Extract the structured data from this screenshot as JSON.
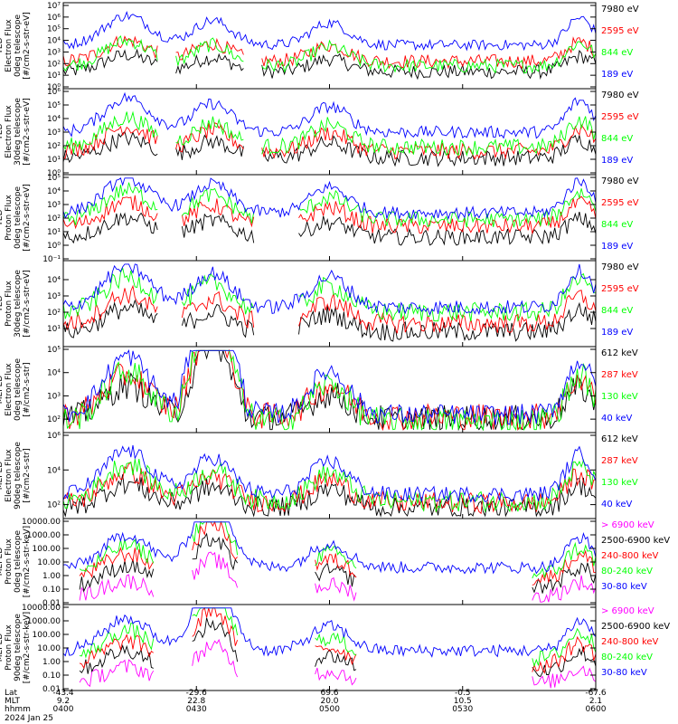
{
  "colors": {
    "blue": "#0000ff",
    "red": "#ff0000",
    "green": "#00ff00",
    "black": "#000000",
    "magenta": "#ff00ff"
  },
  "chart_data": {
    "type": "line",
    "x_ticks": [
      "0400",
      "0430",
      "0500",
      "0530",
      "0600"
    ],
    "footer": {
      "row_labels": [
        "Lat",
        "MLT",
        "hhmm"
      ],
      "lat": [
        "-43.4",
        "-29.6",
        "69.6",
        "-0.5",
        "-67.6"
      ],
      "mlt": [
        "9.2",
        "22.8",
        "20.0",
        "10.5",
        "2.1"
      ],
      "hhmm": [
        "0400",
        "0430",
        "0500",
        "0530",
        "0600"
      ],
      "date": "2024 Jan 25"
    },
    "panels": [
      {
        "ylabel": [
          "TED",
          "Electron Flux",
          "0deg telescope",
          "[#/cm2-s-str-eV]"
        ],
        "log": true,
        "ymin_exp": 0,
        "ymax_exp": 7,
        "ticks": [
          "10⁰",
          "10¹",
          "10²",
          "10³",
          "10⁴",
          "10⁵",
          "10⁶",
          "10⁷"
        ],
        "tick_exps": [
          0,
          1,
          2,
          3,
          4,
          5,
          6,
          7
        ],
        "series": [
          {
            "name": "7980 eV",
            "color": "black",
            "level": 1.3
          },
          {
            "name": "2595 eV",
            "color": "red",
            "level": 2.2
          },
          {
            "name": "844 eV",
            "color": "green",
            "level": 1.8
          },
          {
            "name": "189 eV",
            "color": "blue",
            "level": 3.6
          }
        ]
      },
      {
        "ylabel": [
          "TED",
          "Electron Flux",
          "30deg telescope",
          "[#/cm2-s-str-eV]"
        ],
        "log": true,
        "ymin_exp": 0,
        "ymax_exp": 6,
        "ticks": [
          "10⁰",
          "10¹",
          "10²",
          "10³",
          "10⁴",
          "10⁵",
          "10⁶"
        ],
        "tick_exps": [
          0,
          1,
          2,
          3,
          4,
          5,
          6
        ],
        "series": [
          {
            "name": "7980 eV",
            "color": "black",
            "level": 1.1
          },
          {
            "name": "2595 eV",
            "color": "red",
            "level": 1.6
          },
          {
            "name": "844 eV",
            "color": "green",
            "level": 1.9
          },
          {
            "name": "189 eV",
            "color": "blue",
            "level": 3.0
          }
        ]
      },
      {
        "ylabel": [
          "TED",
          "Proton Flux",
          "0deg telescope",
          "[#/cm2-s-str-eV]"
        ],
        "log": true,
        "ymin_exp": -1,
        "ymax_exp": 5,
        "ticks": [
          "10⁻¹",
          "10⁰",
          "10¹",
          "10²",
          "10³",
          "10⁴",
          "10⁵"
        ],
        "tick_exps": [
          -1,
          0,
          1,
          2,
          3,
          4,
          5
        ],
        "series": [
          {
            "name": "7980 eV",
            "color": "black",
            "level": 0.6
          },
          {
            "name": "2595 eV",
            "color": "red",
            "level": 1.4
          },
          {
            "name": "844 eV",
            "color": "green",
            "level": 1.9
          },
          {
            "name": "189 eV",
            "color": "blue",
            "level": 2.4
          }
        ]
      },
      {
        "ylabel": [
          "TED",
          "Proton Flux",
          "30deg telescope",
          "[#/cm2-s-str-eV]"
        ],
        "log": true,
        "ymin_exp": 0,
        "ymax_exp": 5,
        "ticks": [
          "10¹",
          "10²",
          "10³",
          "10⁴"
        ],
        "tick_exps": [
          1,
          2,
          3,
          4
        ],
        "series": [
          {
            "name": "7980 eV",
            "color": "black",
            "level": 0.8
          },
          {
            "name": "2595 eV",
            "color": "red",
            "level": 1.3
          },
          {
            "name": "844 eV",
            "color": "green",
            "level": 2.0
          },
          {
            "name": "189 eV",
            "color": "blue",
            "level": 2.3
          }
        ]
      },
      {
        "ylabel": [
          "MEPED",
          "Electron Flux",
          "0deg telescope",
          "[#/cm2-s-str]"
        ],
        "log": true,
        "ymin_exp": 1.5,
        "ymax_exp": 5,
        "ticks": [
          "10²",
          "10³",
          "10⁴",
          "10⁵"
        ],
        "tick_exps": [
          2,
          3,
          4,
          5
        ],
        "series": [
          {
            "name": "612 keV",
            "color": "black",
            "level": 2.0
          },
          {
            "name": "287 keV",
            "color": "red",
            "level": 2.1
          },
          {
            "name": "130 keV",
            "color": "green",
            "level": 1.9
          },
          {
            "name": "40 keV",
            "color": "blue",
            "level": 2.2
          }
        ]
      },
      {
        "ylabel": [
          "MEPED",
          "Electron Flux",
          "90deg telescope",
          "[#/cm2-s-str]"
        ],
        "log": true,
        "ymin_exp": 1.3,
        "ymax_exp": 6,
        "ticks": [
          "10²",
          "10⁴",
          "10⁶"
        ],
        "tick_exps": [
          2,
          4,
          6
        ],
        "series": [
          {
            "name": "612 keV",
            "color": "black",
            "level": 1.8
          },
          {
            "name": "287 keV",
            "color": "red",
            "level": 2.1
          },
          {
            "name": "130 keV",
            "color": "green",
            "level": 2.2
          },
          {
            "name": "40 keV",
            "color": "blue",
            "level": 2.6
          }
        ]
      },
      {
        "ylabel": [
          "MEPED",
          "Proton Flux",
          "0deg telescope",
          "[#/cm2-s-str-keV]"
        ],
        "log": true,
        "ymin_exp": -2,
        "ymax_exp": 4,
        "ticks": [
          "0.01",
          "0.10",
          "1.00",
          "10.00",
          "100.00",
          "1000.00",
          "10000.00"
        ],
        "tick_exps": [
          -2,
          -1,
          0,
          1,
          2,
          3,
          4
        ],
        "series": [
          {
            "name": "> 6900 keV",
            "color": "magenta",
            "level": -1.6
          },
          {
            "name": "2500-6900 keV",
            "color": "black",
            "level": -0.8
          },
          {
            "name": "240-800 keV",
            "color": "red",
            "level": -0.2
          },
          {
            "name": "80-240 keV",
            "color": "green",
            "level": 0.1
          },
          {
            "name": "30-80 keV",
            "color": "blue",
            "level": 0.6
          }
        ]
      },
      {
        "ylabel": [
          "MEPED",
          "Proton Flux",
          "90deg telescope",
          "[#/cm2-s-str-keV]"
        ],
        "log": true,
        "ymin_exp": -2,
        "ymax_exp": 4,
        "ticks": [
          "0.01",
          "0.10",
          "1.00",
          "10.00",
          "100.00",
          "1000.00",
          "10000.00"
        ],
        "tick_exps": [
          -2,
          -1,
          0,
          1,
          2,
          3,
          4
        ],
        "series": [
          {
            "name": "> 6900 keV",
            "color": "magenta",
            "level": -1.6
          },
          {
            "name": "2500-6900 keV",
            "color": "black",
            "level": -0.7
          },
          {
            "name": "240-800 keV",
            "color": "red",
            "level": -0.3
          },
          {
            "name": "80-240 keV",
            "color": "green",
            "level": 0.2
          },
          {
            "name": "30-80 keV",
            "color": "blue",
            "level": 0.8
          }
        ]
      }
    ]
  }
}
